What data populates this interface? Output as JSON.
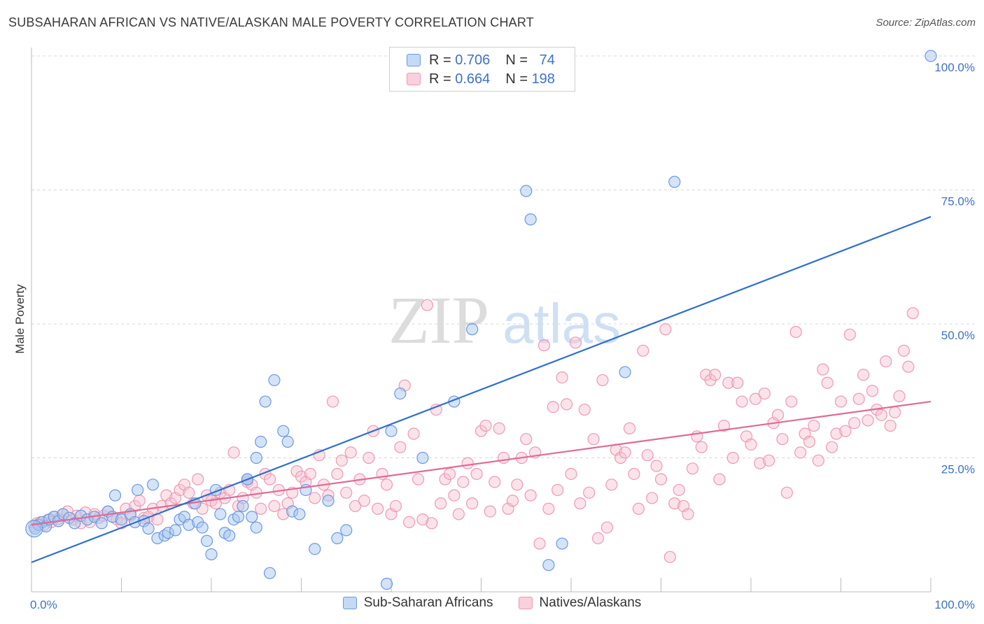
{
  "header": {
    "title": "SUBSAHARAN AFRICAN VS NATIVE/ALASKAN MALE POVERTY CORRELATION CHART",
    "source": "Source: ZipAtlas.com"
  },
  "watermark": {
    "zip": "ZIP",
    "atlas": "atlas"
  },
  "legend": {
    "rows": [
      {
        "r_label": "R =",
        "r_value": "0.706",
        "n_label": "N =",
        "n_value": "74"
      },
      {
        "r_label": "R =",
        "r_value": "0.664",
        "n_label": "N =",
        "n_value": "198"
      }
    ]
  },
  "colors": {
    "blue_fill": "#a9c8f0",
    "blue_stroke": "#6a9ae0",
    "blue_line": "#2f6fd0",
    "pink_fill": "#f6c0d0",
    "pink_stroke": "#ec9ab4",
    "pink_line": "#e06a95",
    "grid": "#d8d8d8",
    "tick_text": "#3b73c8"
  },
  "chart_data": {
    "type": "scatter",
    "title": "SUBSAHARAN AFRICAN VS NATIVE/ALASKAN MALE POVERTY CORRELATION CHART",
    "xlabel": "",
    "ylabel": "Male Poverty",
    "xlim": [
      0,
      100
    ],
    "ylim": [
      0,
      100
    ],
    "x_tick_labels": [
      "0.0%",
      "100.0%"
    ],
    "y_tick_labels": [
      "25.0%",
      "50.0%",
      "75.0%",
      "100.0%"
    ],
    "y_ticks": [
      25,
      50,
      75,
      100
    ],
    "grid": true,
    "legend_position": "top-center",
    "series": [
      {
        "name": "Sub-Saharan Africans",
        "color": "#a9c8f0",
        "trend": {
          "x": [
            0,
            100
          ],
          "y": [
            5.5,
            70
          ]
        },
        "points": [
          [
            0.4,
            11.8
          ],
          [
            0.8,
            12.5
          ],
          [
            1.2,
            13.0
          ],
          [
            1.6,
            12.2
          ],
          [
            2.0,
            13.5
          ],
          [
            2.5,
            14.0
          ],
          [
            3.0,
            13.2
          ],
          [
            3.5,
            14.5
          ],
          [
            4.2,
            13.8
          ],
          [
            4.8,
            12.8
          ],
          [
            5.5,
            14.2
          ],
          [
            6.2,
            13.5
          ],
          [
            7.0,
            14.0
          ],
          [
            7.8,
            12.8
          ],
          [
            8.5,
            15.0
          ],
          [
            9.0,
            14.0
          ],
          [
            9.3,
            18.0
          ],
          [
            10.0,
            13.5
          ],
          [
            11.0,
            14.5
          ],
          [
            11.5,
            13.0
          ],
          [
            11.8,
            19.0
          ],
          [
            12.5,
            13.2
          ],
          [
            13.0,
            11.8
          ],
          [
            13.5,
            20.0
          ],
          [
            14.0,
            10.0
          ],
          [
            14.8,
            10.5
          ],
          [
            15.2,
            11.0
          ],
          [
            16.0,
            11.5
          ],
          [
            16.5,
            13.5
          ],
          [
            17.0,
            14.0
          ],
          [
            17.5,
            12.5
          ],
          [
            18.2,
            16.5
          ],
          [
            18.5,
            13.0
          ],
          [
            19.0,
            12.0
          ],
          [
            19.5,
            9.5
          ],
          [
            20.0,
            7.0
          ],
          [
            20.5,
            19.0
          ],
          [
            21.0,
            14.5
          ],
          [
            21.5,
            11.0
          ],
          [
            22.0,
            10.5
          ],
          [
            22.5,
            13.5
          ],
          [
            23.0,
            14.0
          ],
          [
            23.5,
            16.0
          ],
          [
            24.0,
            21.0
          ],
          [
            24.5,
            14.0
          ],
          [
            25.0,
            12.0
          ],
          [
            25.5,
            28.0
          ],
          [
            26.0,
            35.5
          ],
          [
            26.5,
            3.5
          ],
          [
            27.0,
            39.5
          ],
          [
            28.0,
            30.0
          ],
          [
            28.5,
            28.0
          ],
          [
            29.0,
            15.0
          ],
          [
            29.8,
            14.5
          ],
          [
            30.5,
            19.0
          ],
          [
            31.5,
            8.0
          ],
          [
            33.0,
            17.0
          ],
          [
            34.0,
            10.0
          ],
          [
            35.0,
            11.5
          ],
          [
            39.5,
            1.5
          ],
          [
            40.0,
            30.0
          ],
          [
            41.0,
            37.0
          ],
          [
            43.5,
            25.0
          ],
          [
            47.0,
            35.5
          ],
          [
            49.0,
            49.0
          ],
          [
            55.0,
            74.8
          ],
          [
            55.5,
            69.5
          ],
          [
            57.5,
            5.0
          ],
          [
            59.0,
            9.0
          ],
          [
            66.0,
            41.0
          ],
          [
            71.5,
            76.5
          ],
          [
            100.0,
            100.0
          ],
          [
            25.0,
            25.0
          ],
          [
            24.0,
            21.0
          ]
        ]
      },
      {
        "name": "Natives/Alaskans",
        "color": "#f6c0d0",
        "trend": {
          "x": [
            0,
            100
          ],
          "y": [
            12.5,
            35.5
          ]
        },
        "points": [
          [
            0.3,
            12.2
          ],
          [
            0.6,
            12.8
          ],
          [
            1.0,
            13.0
          ],
          [
            1.4,
            12.5
          ],
          [
            1.8,
            13.4
          ],
          [
            2.2,
            13.0
          ],
          [
            2.6,
            14.0
          ],
          [
            3.0,
            13.6
          ],
          [
            3.5,
            14.5
          ],
          [
            4.0,
            15.0
          ],
          [
            4.6,
            13.5
          ],
          [
            5.0,
            14.2
          ],
          [
            5.5,
            12.8
          ],
          [
            6.0,
            14.8
          ],
          [
            6.5,
            13.0
          ],
          [
            7.0,
            14.5
          ],
          [
            7.5,
            13.8
          ],
          [
            8.0,
            14.2
          ],
          [
            8.5,
            15.0
          ],
          [
            9.0,
            14.0
          ],
          [
            9.5,
            13.5
          ],
          [
            10.0,
            12.8
          ],
          [
            10.5,
            15.5
          ],
          [
            11.0,
            14.2
          ],
          [
            11.5,
            16.0
          ],
          [
            12.0,
            17.0
          ],
          [
            12.5,
            13.8
          ],
          [
            13.0,
            14.0
          ],
          [
            13.5,
            15.5
          ],
          [
            14.0,
            13.5
          ],
          [
            14.5,
            16.0
          ],
          [
            15.0,
            18.0
          ],
          [
            15.5,
            16.5
          ],
          [
            16.0,
            17.5
          ],
          [
            16.5,
            19.0
          ],
          [
            17.0,
            20.0
          ],
          [
            17.5,
            18.5
          ],
          [
            18.0,
            16.5
          ],
          [
            18.5,
            21.0
          ],
          [
            19.0,
            15.5
          ],
          [
            19.5,
            18.0
          ],
          [
            20.0,
            17.0
          ],
          [
            20.5,
            16.5
          ],
          [
            21.0,
            18.5
          ],
          [
            21.5,
            17.5
          ],
          [
            22.0,
            19.0
          ],
          [
            22.5,
            26.0
          ],
          [
            23.0,
            16.0
          ],
          [
            23.5,
            17.5
          ],
          [
            24.0,
            20.5
          ],
          [
            24.5,
            20.0
          ],
          [
            25.0,
            18.5
          ],
          [
            25.5,
            15.5
          ],
          [
            26.0,
            22.0
          ],
          [
            26.5,
            21.0
          ],
          [
            27.0,
            16.0
          ],
          [
            27.5,
            19.0
          ],
          [
            28.0,
            14.5
          ],
          [
            28.5,
            16.5
          ],
          [
            29.0,
            18.5
          ],
          [
            29.5,
            22.5
          ],
          [
            30.0,
            21.5
          ],
          [
            30.5,
            20.5
          ],
          [
            31.0,
            22.0
          ],
          [
            31.5,
            17.5
          ],
          [
            32.0,
            25.5
          ],
          [
            32.5,
            20.0
          ],
          [
            33.0,
            18.0
          ],
          [
            33.5,
            35.5
          ],
          [
            34.0,
            22.0
          ],
          [
            34.5,
            24.5
          ],
          [
            35.0,
            18.5
          ],
          [
            35.5,
            26.0
          ],
          [
            36.0,
            16.0
          ],
          [
            36.5,
            21.0
          ],
          [
            37.0,
            17.0
          ],
          [
            37.5,
            25.0
          ],
          [
            38.0,
            30.0
          ],
          [
            38.5,
            15.5
          ],
          [
            39.0,
            22.0
          ],
          [
            39.5,
            20.0
          ],
          [
            40.0,
            14.5
          ],
          [
            40.5,
            16.0
          ],
          [
            41.0,
            27.0
          ],
          [
            41.5,
            38.5
          ],
          [
            42.0,
            13.0
          ],
          [
            42.5,
            29.5
          ],
          [
            43.0,
            21.0
          ],
          [
            43.5,
            13.5
          ],
          [
            44.0,
            53.5
          ],
          [
            44.5,
            12.8
          ],
          [
            45.0,
            34.0
          ],
          [
            45.5,
            16.5
          ],
          [
            46.0,
            21.0
          ],
          [
            46.5,
            22.0
          ],
          [
            47.0,
            18.0
          ],
          [
            47.5,
            14.5
          ],
          [
            48.0,
            20.5
          ],
          [
            48.5,
            24.0
          ],
          [
            49.0,
            16.5
          ],
          [
            49.5,
            22.0
          ],
          [
            50.0,
            30.0
          ],
          [
            50.5,
            31.0
          ],
          [
            51.0,
            15.0
          ],
          [
            51.5,
            20.5
          ],
          [
            52.0,
            30.5
          ],
          [
            52.5,
            25.0
          ],
          [
            53.0,
            15.5
          ],
          [
            53.5,
            17.0
          ],
          [
            54.0,
            20.0
          ],
          [
            54.5,
            25.0
          ],
          [
            55.0,
            28.5
          ],
          [
            55.5,
            18.0
          ],
          [
            56.0,
            26.0
          ],
          [
            56.5,
            9.0
          ],
          [
            57.0,
            46.0
          ],
          [
            57.5,
            15.5
          ],
          [
            58.0,
            34.5
          ],
          [
            58.5,
            19.0
          ],
          [
            59.0,
            40.0
          ],
          [
            59.5,
            35.0
          ],
          [
            60.0,
            22.0
          ],
          [
            60.5,
            46.5
          ],
          [
            61.0,
            16.5
          ],
          [
            61.5,
            34.0
          ],
          [
            62.0,
            18.5
          ],
          [
            62.5,
            28.5
          ],
          [
            63.0,
            10.0
          ],
          [
            63.5,
            39.5
          ],
          [
            64.0,
            12.0
          ],
          [
            64.5,
            20.0
          ],
          [
            65.0,
            26.5
          ],
          [
            65.5,
            25.0
          ],
          [
            66.0,
            26.0
          ],
          [
            66.5,
            30.5
          ],
          [
            67.0,
            22.0
          ],
          [
            67.5,
            15.5
          ],
          [
            68.0,
            45.0
          ],
          [
            68.5,
            25.5
          ],
          [
            69.0,
            17.5
          ],
          [
            69.5,
            23.5
          ],
          [
            70.0,
            21.0
          ],
          [
            70.5,
            49.0
          ],
          [
            71.0,
            6.5
          ],
          [
            71.5,
            16.5
          ],
          [
            72.0,
            19.0
          ],
          [
            72.5,
            16.0
          ],
          [
            73.0,
            14.5
          ],
          [
            73.5,
            23.0
          ],
          [
            74.0,
            29.0
          ],
          [
            74.5,
            27.0
          ],
          [
            75.0,
            40.5
          ],
          [
            75.5,
            39.5
          ],
          [
            76.0,
            40.5
          ],
          [
            76.5,
            21.0
          ],
          [
            77.0,
            31.0
          ],
          [
            77.5,
            39.0
          ],
          [
            78.0,
            25.0
          ],
          [
            78.5,
            39.0
          ],
          [
            79.0,
            35.5
          ],
          [
            79.5,
            29.0
          ],
          [
            80.0,
            27.5
          ],
          [
            80.5,
            36.0
          ],
          [
            81.0,
            24.0
          ],
          [
            81.5,
            37.0
          ],
          [
            82.0,
            24.5
          ],
          [
            82.5,
            31.5
          ],
          [
            83.0,
            33.0
          ],
          [
            83.5,
            28.5
          ],
          [
            84.0,
            18.5
          ],
          [
            84.5,
            35.5
          ],
          [
            85.0,
            48.5
          ],
          [
            85.5,
            26.0
          ],
          [
            86.0,
            29.5
          ],
          [
            86.5,
            28.0
          ],
          [
            87.0,
            31.0
          ],
          [
            87.5,
            24.5
          ],
          [
            88.0,
            41.5
          ],
          [
            88.5,
            39.0
          ],
          [
            89.0,
            27.0
          ],
          [
            89.5,
            29.5
          ],
          [
            90.0,
            35.5
          ],
          [
            90.5,
            30.0
          ],
          [
            91.0,
            48.0
          ],
          [
            91.5,
            31.5
          ],
          [
            92.0,
            36.0
          ],
          [
            92.5,
            40.5
          ],
          [
            93.0,
            32.0
          ],
          [
            93.5,
            37.5
          ],
          [
            94.0,
            34.0
          ],
          [
            94.5,
            33.0
          ],
          [
            95.0,
            43.0
          ],
          [
            95.5,
            31.0
          ],
          [
            96.0,
            33.5
          ],
          [
            96.5,
            36.5
          ],
          [
            97.0,
            45.0
          ],
          [
            97.5,
            42.0
          ],
          [
            98.0,
            52.0
          ]
        ]
      }
    ]
  },
  "bottom_legend": {
    "items": [
      {
        "label": "Sub-Saharan Africans"
      },
      {
        "label": "Natives/Alaskans"
      }
    ]
  }
}
